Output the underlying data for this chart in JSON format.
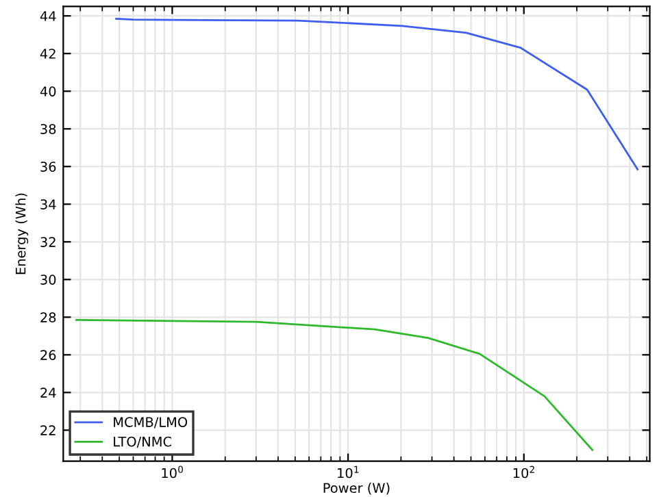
{
  "chart_data": {
    "type": "line",
    "xlabel": "Power (W)",
    "ylabel": "Energy (Wh)",
    "log": "x",
    "xlim": [
      0.24,
      520
    ],
    "xticks": [
      {
        "value": 1,
        "label": "10$^{0}$"
      },
      {
        "value": 10,
        "label": "10$^{1}$"
      },
      {
        "value": 100,
        "label": "10$^{2}$"
      }
    ],
    "ylim": [
      20.35,
      44.5
    ],
    "yticks": [
      22,
      24,
      26,
      28,
      30,
      32,
      34,
      36,
      38,
      40,
      42,
      44
    ],
    "grid": true,
    "legend": "bottom left",
    "marker": "none",
    "line_style": "solid",
    "series": [
      {
        "name": "MCMB/LMO",
        "color": "#3f5ef0",
        "x": [
          0.48,
          0.6,
          5.2,
          20.3,
          47,
          96,
          229,
          443
        ],
        "values": [
          43.85,
          43.8,
          43.75,
          43.47,
          43.1,
          42.3,
          40.08,
          35.85
        ]
      },
      {
        "name": "LTO/NMC",
        "color": "#2cba2c",
        "x": [
          0.285,
          3.0,
          14.2,
          28.5,
          56,
          131,
          245
        ],
        "values": [
          27.85,
          27.75,
          27.35,
          26.9,
          26.05,
          23.8,
          20.95
        ]
      }
    ]
  }
}
